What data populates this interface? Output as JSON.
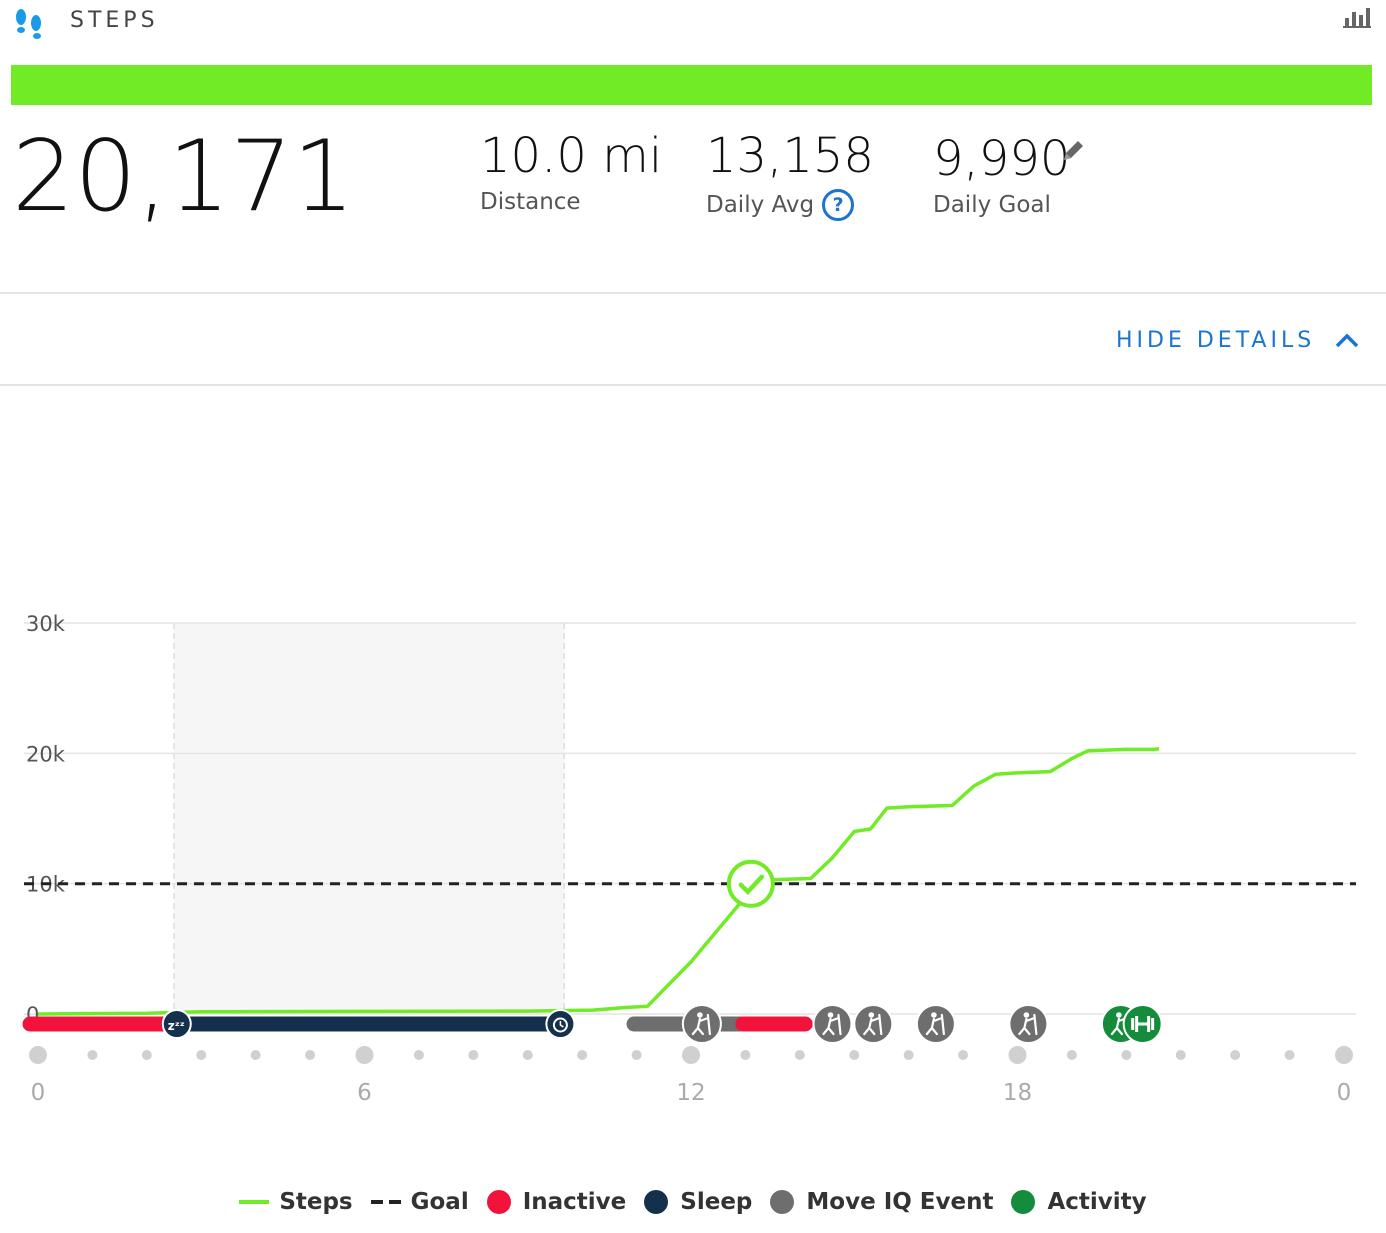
{
  "header": {
    "title": "STEPS"
  },
  "colors": {
    "accent": "#71eb26",
    "blue": "#1a74d1",
    "inactive": "#f2133c",
    "sleep": "#14304d",
    "move_iq": "#6e6e6e",
    "activity": "#148c3c"
  },
  "summary": {
    "total_steps": "20,171",
    "goal_progress": 1.0,
    "distance": {
      "value": "10.0 mi",
      "label": "Distance"
    },
    "daily_avg": {
      "value": "13,158",
      "label": "Daily Avg"
    },
    "daily_goal": {
      "value": "9,990",
      "label": "Daily Goal"
    }
  },
  "details_toggle": {
    "label": "HIDE DETAILS"
  },
  "chart_data": {
    "type": "line",
    "x_axis": {
      "min": 0,
      "max": 24,
      "tick_labels": [
        "0",
        "6",
        "12",
        "18",
        "0"
      ],
      "tick_hours": [
        0,
        6,
        12,
        18,
        24
      ],
      "dot_step_hours": 1
    },
    "y_axis": {
      "min": 0,
      "max": 30000,
      "ticks": [
        0,
        10000,
        20000,
        30000
      ],
      "tick_labels": [
        "0",
        "10k",
        "20k",
        "30k"
      ]
    },
    "grid": true,
    "goal": 9990,
    "goal_reached_hour": 13.1,
    "sleep_window": [
      2.5,
      9.67
    ],
    "series": [
      {
        "name": "Steps",
        "points": [
          [
            0,
            0
          ],
          [
            2,
            50
          ],
          [
            3,
            180
          ],
          [
            6,
            200
          ],
          [
            9,
            220
          ],
          [
            10.2,
            300
          ],
          [
            10.8,
            500
          ],
          [
            11.2,
            600
          ],
          [
            12,
            4000
          ],
          [
            13.2,
            9990
          ],
          [
            13.5,
            10300
          ],
          [
            14.2,
            10400
          ],
          [
            14.6,
            12000
          ],
          [
            15,
            14000
          ],
          [
            15.3,
            14200
          ],
          [
            15.6,
            15800
          ],
          [
            16,
            15900
          ],
          [
            16.8,
            16000
          ],
          [
            17.2,
            17500
          ],
          [
            17.6,
            18400
          ],
          [
            18,
            18500
          ],
          [
            18.6,
            18600
          ],
          [
            19,
            19600
          ],
          [
            19.3,
            20200
          ],
          [
            20,
            20300
          ],
          [
            20.5,
            20300
          ],
          [
            20.6,
            20350
          ]
        ]
      }
    ],
    "events": [
      {
        "type": "inactive",
        "start": 0,
        "end": 2.4
      },
      {
        "type": "sleep",
        "start": 2.55,
        "end": 9.6
      },
      {
        "type": "move_iq",
        "start": 11.1,
        "end": 12.9
      },
      {
        "type": "inactive",
        "start": 13.1,
        "end": 14.1
      }
    ],
    "markers": [
      {
        "type": "sleep_start",
        "hour": 2.55,
        "icon": "zzz-icon"
      },
      {
        "type": "sleep_end",
        "hour": 9.6,
        "icon": "alarm-clock-icon"
      },
      {
        "type": "move_iq",
        "hour": 12.2,
        "icon": "elliptical-icon"
      },
      {
        "type": "move_iq",
        "hour": 14.6,
        "icon": "elliptical-icon"
      },
      {
        "type": "move_iq",
        "hour": 15.35,
        "icon": "elliptical-icon"
      },
      {
        "type": "move_iq",
        "hour": 16.5,
        "icon": "elliptical-icon"
      },
      {
        "type": "move_iq",
        "hour": 18.2,
        "icon": "elliptical-icon"
      },
      {
        "type": "activity",
        "hour": 19.9,
        "icon": "elliptical-icon"
      },
      {
        "type": "activity",
        "hour": 20.3,
        "icon": "strength-training-icon"
      }
    ]
  },
  "legend": [
    {
      "label": "Steps",
      "kind": "line",
      "color": "#71eb26"
    },
    {
      "label": "Goal",
      "kind": "dash",
      "color": "#222222"
    },
    {
      "label": "Inactive",
      "kind": "dot",
      "color": "#f2133c"
    },
    {
      "label": "Sleep",
      "kind": "dot",
      "color": "#14304d"
    },
    {
      "label": "Move IQ Event",
      "kind": "dot",
      "color": "#6e6e6e"
    },
    {
      "label": "Activity",
      "kind": "dot",
      "color": "#148c3c"
    }
  ]
}
